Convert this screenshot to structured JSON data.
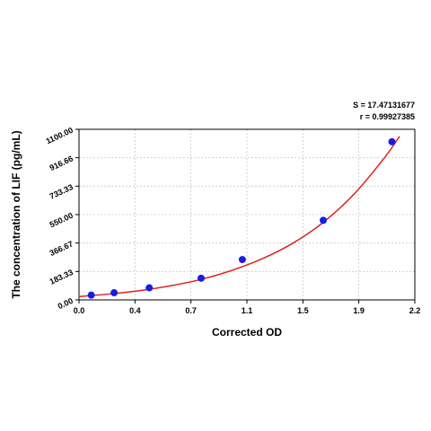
{
  "chart_data": {
    "type": "scatter",
    "xlabel": "Corrected OD",
    "ylabel": "The concentration of LIF (pg/mL)",
    "xlim": [
      0,
      2.2
    ],
    "ylim": [
      0,
      1100
    ],
    "x_ticks": [
      "0.0",
      "0.4",
      "0.7",
      "1.1",
      "1.5",
      "1.9",
      "2.2"
    ],
    "x_tick_values": [
      0,
      0.367,
      0.733,
      1.1,
      1.467,
      1.833,
      2.2
    ],
    "y_ticks": [
      "0.00",
      "183.33",
      "366.67",
      "550.00",
      "733.33",
      "916.66",
      "1100.00"
    ],
    "y_tick_values": [
      0,
      183.33,
      366.67,
      550,
      733.33,
      916.66,
      1100
    ],
    "grid": true,
    "points": [
      {
        "x": 0.08,
        "y": 31
      },
      {
        "x": 0.23,
        "y": 46
      },
      {
        "x": 0.46,
        "y": 78
      },
      {
        "x": 0.8,
        "y": 140
      },
      {
        "x": 1.07,
        "y": 260
      },
      {
        "x": 1.6,
        "y": 513
      },
      {
        "x": 2.05,
        "y": 1020
      }
    ],
    "fit_curve": {
      "x": [
        0.0,
        0.2,
        0.4,
        0.6,
        0.8,
        1.0,
        1.2,
        1.4,
        1.6,
        1.8,
        2.0,
        2.1
      ],
      "y": [
        22,
        38,
        60,
        91,
        132,
        190,
        265,
        365,
        500,
        680,
        915,
        1055
      ]
    },
    "stats": {
      "s": "S = 17.47131677",
      "r": "r = 0.99927385"
    },
    "colors": {
      "points": "#1c1ce0",
      "curve": "#e02020",
      "grid": "#c8c8c8",
      "axis": "#000000"
    }
  }
}
